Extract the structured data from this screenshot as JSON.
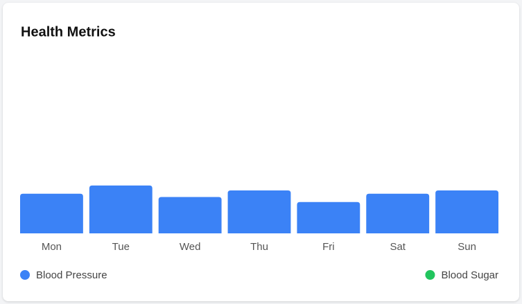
{
  "chart_data": {
    "type": "bar",
    "title": "Health Metrics",
    "categories": [
      "Mon",
      "Tue",
      "Wed",
      "Thu",
      "Fri",
      "Sat",
      "Sun"
    ],
    "series": [
      {
        "name": "Blood Pressure",
        "color": "#3b82f6",
        "values": [
          120,
          145,
          110,
          130,
          95,
          120,
          130
        ]
      },
      {
        "name": "Blood Sugar",
        "color": "#22c55e"
      }
    ],
    "ylim": [
      0,
      560
    ]
  }
}
